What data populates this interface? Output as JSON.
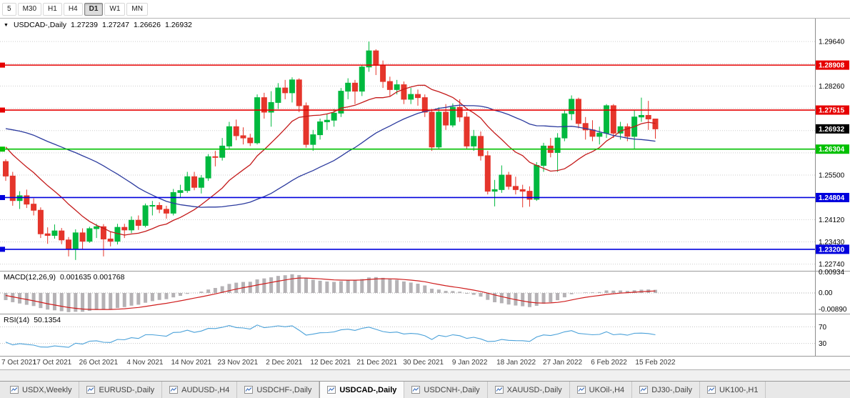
{
  "toolbar": {
    "timeframes": [
      "5",
      "M30",
      "H1",
      "H4",
      "D1",
      "W1",
      "MN"
    ],
    "active": "D1"
  },
  "price_pane": {
    "symbol_label": "USDCAD-,Daily",
    "ohlc_display": {
      "open": "1.27239",
      "high": "1.27247",
      "low": "1.26626",
      "close": "1.26932"
    },
    "hlines": [
      {
        "label": "1.28908",
        "value": 1.28908,
        "color": "#e60000"
      },
      {
        "label": "1.27515",
        "value": 1.27515,
        "color": "#e60000"
      },
      {
        "label": "1.26304",
        "value": 1.26304,
        "color": "#00c000"
      },
      {
        "label": "1.24804",
        "value": 1.24804,
        "color": "#0000dd"
      },
      {
        "label": "1.23200",
        "value": 1.232,
        "color": "#0000dd"
      }
    ],
    "bid_tag": {
      "label": "1.26932",
      "value": 1.26932,
      "color": "#000000"
    }
  },
  "macd_pane": {
    "title": "MACD(12,26,9)",
    "values": "0.001635 0.001768",
    "axis_labels": [
      "0.00934",
      "0.00",
      "-0.00890"
    ],
    "params": [
      12,
      26,
      9
    ]
  },
  "rsi_pane": {
    "title": "RSI(14)",
    "value": "50.1354",
    "axis_labels": [
      "70",
      "30"
    ],
    "period": 14
  },
  "tabs": {
    "active": "USDCAD-,Daily",
    "items": [
      "USDX,Weekly",
      "EURUSD-,Daily",
      "AUDUSD-,H4",
      "USDCHF-,Daily",
      "USDCAD-,Daily",
      "USDCNH-,Daily",
      "XAUUSD-,Daily",
      "UKOil-,H4",
      "DJ30-,Daily",
      "UK100-,H1"
    ]
  },
  "colors": {
    "up": "#00b93f",
    "down": "#e5352b",
    "ma_fast": "#c41a1a",
    "ma_slow": "#2b3a9e",
    "macd_hist": "#b5b2b5",
    "macd_signal": "#cf1d1d",
    "rsi": "#4aa1d9",
    "grid": "#cdcdcd",
    "separator": "#9a9a9a",
    "axis_text": "#000000",
    "date_text": "#3a3a3a"
  },
  "chart_data": {
    "type": "candlestick",
    "symbol": "USDCAD",
    "timeframe": "Daily",
    "y_range": {
      "min": 1.226,
      "max": 1.3004
    },
    "y_ticks": [
      "1.29640",
      "1.28950",
      "1.28260",
      "1.27570",
      "1.26880",
      "1.26190",
      "1.25500",
      "1.24810",
      "1.24120",
      "1.23430",
      "1.22740"
    ],
    "x_labels": [
      "7 Oct 2021",
      "17 Oct 2021",
      "26 Oct 2021",
      "4 Nov 2021",
      "14 Nov 2021",
      "23 Nov 2021",
      "2 Dec 2021",
      "12 Dec 2021",
      "21 Dec 2021",
      "30 Dec 2021",
      "9 Jan 2022",
      "18 Jan 2022",
      "27 Jan 2022",
      "6 Feb 2022",
      "15 Feb 2022"
    ],
    "sma_fast": 13,
    "sma_slow": 34,
    "pre_closes": [
      1.2585,
      1.26,
      1.262,
      1.265,
      1.268,
      1.27,
      1.269,
      1.267,
      1.265,
      1.263,
      1.265,
      1.267,
      1.27,
      1.273,
      1.276,
      1.279,
      1.282,
      1.285,
      1.288,
      1.2895,
      1.286,
      1.282,
      1.278,
      1.274,
      1.27,
      1.2665,
      1.264,
      1.262,
      1.2605,
      1.259,
      1.26,
      1.261,
      1.2595,
      1.2588
    ],
    "ohlc": [
      [
        1.2592,
        1.2599,
        1.2532,
        1.2547
      ],
      [
        1.2547,
        1.256,
        1.2455,
        1.2471
      ],
      [
        1.2471,
        1.25,
        1.2445,
        1.2486
      ],
      [
        1.2486,
        1.2505,
        1.2448,
        1.246
      ],
      [
        1.246,
        1.2478,
        1.2425,
        1.2441
      ],
      [
        1.2441,
        1.245,
        1.2355,
        1.2368
      ],
      [
        1.2368,
        1.2388,
        1.2337,
        1.2363
      ],
      [
        1.2363,
        1.2397,
        1.2353,
        1.2377
      ],
      [
        1.2377,
        1.2386,
        1.2336,
        1.2349
      ],
      [
        1.2349,
        1.2358,
        1.2298,
        1.2322
      ],
      [
        1.2322,
        1.2382,
        1.2287,
        1.2371
      ],
      [
        1.2371,
        1.2385,
        1.232,
        1.2345
      ],
      [
        1.2345,
        1.239,
        1.234,
        1.2384
      ],
      [
        1.2384,
        1.2399,
        1.2355,
        1.239
      ],
      [
        1.239,
        1.2398,
        1.2298,
        1.2352
      ],
      [
        1.2352,
        1.2375,
        1.2329,
        1.2345
      ],
      [
        1.2345,
        1.2399,
        1.2335,
        1.2388
      ],
      [
        1.2388,
        1.2399,
        1.2355,
        1.238
      ],
      [
        1.238,
        1.2422,
        1.237,
        1.241
      ],
      [
        1.241,
        1.2425,
        1.238,
        1.2394
      ],
      [
        1.2394,
        1.2462,
        1.2388,
        1.2455
      ],
      [
        1.2455,
        1.247,
        1.2425,
        1.2456
      ],
      [
        1.2456,
        1.2466,
        1.2432,
        1.2444
      ],
      [
        1.2444,
        1.2455,
        1.2415,
        1.2432
      ],
      [
        1.2432,
        1.2507,
        1.2425,
        1.2496
      ],
      [
        1.2496,
        1.252,
        1.248,
        1.2502
      ],
      [
        1.2502,
        1.256,
        1.2495,
        1.2545
      ],
      [
        1.2545,
        1.256,
        1.2503,
        1.2512
      ],
      [
        1.2512,
        1.255,
        1.2493,
        1.2541
      ],
      [
        1.2541,
        1.2615,
        1.2532,
        1.2607
      ],
      [
        1.2607,
        1.2625,
        1.2577,
        1.2605
      ],
      [
        1.2605,
        1.2665,
        1.2595,
        1.264
      ],
      [
        1.264,
        1.2715,
        1.263,
        1.27
      ],
      [
        1.27,
        1.2722,
        1.2658,
        1.2672
      ],
      [
        1.2672,
        1.2698,
        1.2645,
        1.2665
      ],
      [
        1.2665,
        1.2678,
        1.264,
        1.265
      ],
      [
        1.265,
        1.28,
        1.2645,
        1.279
      ],
      [
        1.279,
        1.2805,
        1.2725,
        1.2745
      ],
      [
        1.2745,
        1.281,
        1.27,
        1.2775
      ],
      [
        1.2775,
        1.2835,
        1.2755,
        1.282
      ],
      [
        1.282,
        1.2845,
        1.2785,
        1.2805
      ],
      [
        1.2805,
        1.2853,
        1.2775,
        1.2845
      ],
      [
        1.2845,
        1.285,
        1.2745,
        1.2765
      ],
      [
        1.2765,
        1.2775,
        1.2635,
        1.2645
      ],
      [
        1.2645,
        1.269,
        1.2625,
        1.2675
      ],
      [
        1.2675,
        1.2725,
        1.266,
        1.2715
      ],
      [
        1.2715,
        1.274,
        1.269,
        1.272
      ],
      [
        1.272,
        1.2755,
        1.27,
        1.2742
      ],
      [
        1.2742,
        1.282,
        1.273,
        1.281
      ],
      [
        1.281,
        1.285,
        1.2785,
        1.2835
      ],
      [
        1.2835,
        1.2845,
        1.277,
        1.281
      ],
      [
        1.281,
        1.289,
        1.2795,
        1.2885
      ],
      [
        1.2885,
        1.2964,
        1.287,
        1.2935
      ],
      [
        1.2935,
        1.294,
        1.286,
        1.289
      ],
      [
        1.289,
        1.2905,
        1.282,
        1.284
      ],
      [
        1.284,
        1.2855,
        1.2795,
        1.2815
      ],
      [
        1.2815,
        1.2845,
        1.28,
        1.283
      ],
      [
        1.283,
        1.284,
        1.277,
        1.2785
      ],
      [
        1.2785,
        1.282,
        1.277,
        1.28
      ],
      [
        1.28,
        1.2815,
        1.2765,
        1.279
      ],
      [
        1.279,
        1.28,
        1.273,
        1.2745
      ],
      [
        1.2745,
        1.2755,
        1.2625,
        1.2637
      ],
      [
        1.2637,
        1.276,
        1.263,
        1.2745
      ],
      [
        1.2745,
        1.277,
        1.269,
        1.2705
      ],
      [
        1.2705,
        1.2772,
        1.2698,
        1.276
      ],
      [
        1.276,
        1.2785,
        1.2715,
        1.273
      ],
      [
        1.273,
        1.2745,
        1.263,
        1.264
      ],
      [
        1.264,
        1.269,
        1.2625,
        1.267
      ],
      [
        1.267,
        1.2685,
        1.2595,
        1.261
      ],
      [
        1.261,
        1.2625,
        1.249,
        1.25
      ],
      [
        1.25,
        1.2535,
        1.2453,
        1.2505
      ],
      [
        1.2505,
        1.258,
        1.2495,
        1.255
      ],
      [
        1.255,
        1.256,
        1.2505,
        1.2515
      ],
      [
        1.2515,
        1.2545,
        1.249,
        1.2505
      ],
      [
        1.2505,
        1.252,
        1.245,
        1.25
      ],
      [
        1.25,
        1.2515,
        1.2452,
        1.2475
      ],
      [
        1.2475,
        1.259,
        1.247,
        1.258
      ],
      [
        1.258,
        1.265,
        1.256,
        1.264
      ],
      [
        1.264,
        1.2665,
        1.2605,
        1.262
      ],
      [
        1.262,
        1.268,
        1.256,
        1.2665
      ],
      [
        1.2665,
        1.275,
        1.2655,
        1.274
      ],
      [
        1.274,
        1.2797,
        1.272,
        1.2785
      ],
      [
        1.2785,
        1.279,
        1.2695,
        1.271
      ],
      [
        1.271,
        1.273,
        1.266,
        1.269
      ],
      [
        1.269,
        1.272,
        1.2655,
        1.267
      ],
      [
        1.267,
        1.27,
        1.2645,
        1.268
      ],
      [
        1.268,
        1.277,
        1.2665,
        1.2765
      ],
      [
        1.2765,
        1.277,
        1.2665,
        1.268
      ],
      [
        1.268,
        1.2715,
        1.266,
        1.27
      ],
      [
        1.27,
        1.271,
        1.2655,
        1.267
      ],
      [
        1.267,
        1.275,
        1.263,
        1.273
      ],
      [
        1.273,
        1.279,
        1.2715,
        1.2735
      ],
      [
        1.2735,
        1.278,
        1.269,
        1.2724
      ],
      [
        1.27239,
        1.27247,
        1.26626,
        1.26932
      ]
    ]
  }
}
